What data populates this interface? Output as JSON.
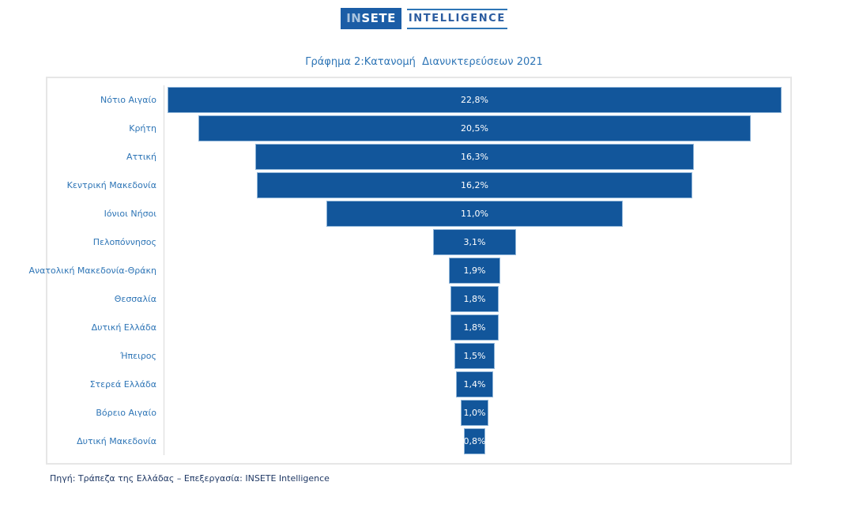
{
  "header": {
    "logo": {
      "box_prefix": "IN",
      "box_suffix": "SETE",
      "wordmark": "INTELLIGENCE"
    }
  },
  "chart": {
    "title": "Γράφημα 2:Κατανομή  Διανυκτερεύσεων 2021"
  },
  "chart_data": {
    "type": "bar",
    "subtype": "horizontal-centered-funnel",
    "title": "Γράφημα 2:Κατανομή  Διανυκτερεύσεων 2021",
    "categories": [
      "Νότιο Αιγαίο",
      "Κρήτη",
      "Αττική",
      "Κεντρική Μακεδονία",
      "Ιόνιοι Νήσοι",
      "Πελοπόννησος",
      "Ανατολική Μακεδονία-Θράκη",
      "Θεσσαλία",
      "Δυτική Ελλάδα",
      "Ήπειρος",
      "Στερεά Ελλάδα",
      "Βόρειο Αιγαίο",
      "Δυτική Μακεδονία"
    ],
    "values": [
      22.8,
      20.5,
      16.3,
      16.2,
      11.0,
      3.1,
      1.9,
      1.8,
      1.8,
      1.5,
      1.4,
      1.0,
      0.8
    ],
    "value_labels": [
      "22,8%",
      "20,5%",
      "16,3%",
      "16,2%",
      "11,0%",
      "3,1%",
      "1,9%",
      "1,8%",
      "1,8%",
      "1,5%",
      "1,4%",
      "1,0%",
      "0,8%"
    ],
    "unit": "%",
    "axis_max_scale": 23.05,
    "grid": false,
    "legend": null,
    "xlabel": "",
    "ylabel": "",
    "colors": {
      "bar_fill": "#12569B",
      "bar_border": "#8EB4D8",
      "value_text": "#FFFFFF",
      "label_text": "#2E75B6",
      "title_text": "#2E75B6",
      "axis_line": "#D9D9D9",
      "box_border": "#E6E6E6",
      "footer_text": "#1F3864",
      "logo_box": "#1B5DA6"
    }
  },
  "footer": {
    "source": "Πηγή: Τράπεζα της Ελλάδας – Επεξεργασία: INSETE Intelligence"
  }
}
